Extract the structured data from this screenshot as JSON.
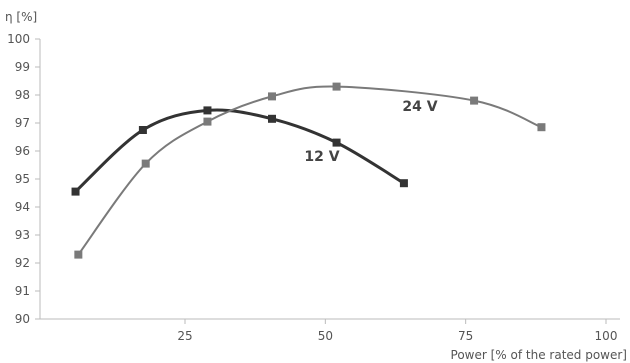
{
  "chart_data": {
    "type": "line",
    "ylabel": "η [%]",
    "xlabel": "Power [% of the rated power]",
    "xlim": [
      0,
      100
    ],
    "ylim": [
      90,
      100
    ],
    "x_ticks": [
      25,
      50,
      75,
      100
    ],
    "y_ticks": [
      90,
      91,
      92,
      93,
      94,
      95,
      96,
      97,
      98,
      99,
      100
    ],
    "grid": false,
    "legend": "none",
    "series": [
      {
        "name": "12 V",
        "color": "#333333",
        "points": [
          {
            "x": 5.5,
            "y": 94.55
          },
          {
            "x": 17.5,
            "y": 96.75
          },
          {
            "x": 29,
            "y": 97.45
          },
          {
            "x": 40.5,
            "y": 97.15
          },
          {
            "x": 52,
            "y": 96.3
          },
          {
            "x": 64,
            "y": 94.85
          }
        ]
      },
      {
        "name": "24 V",
        "color": "#7a7a7a",
        "points": [
          {
            "x": 6,
            "y": 92.3
          },
          {
            "x": 18,
            "y": 95.55
          },
          {
            "x": 29,
            "y": 97.05
          },
          {
            "x": 40.5,
            "y": 97.95
          },
          {
            "x": 52,
            "y": 98.3
          },
          {
            "x": 76.5,
            "y": 97.8
          },
          {
            "x": 88.5,
            "y": 96.85
          }
        ]
      }
    ]
  }
}
